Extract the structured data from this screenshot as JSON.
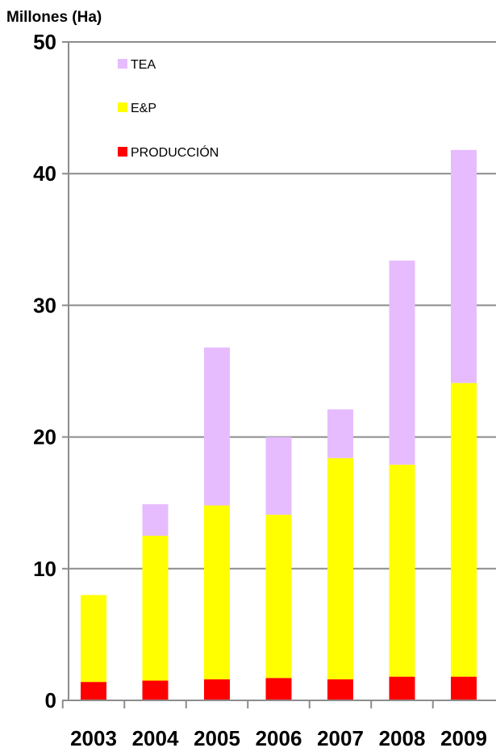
{
  "chart_data": {
    "type": "bar",
    "stacked": true,
    "ylabel": "Millones (Ha)",
    "categories": [
      "2003",
      "2004",
      "2005",
      "2006",
      "2007",
      "2008",
      "2009"
    ],
    "ylim": [
      0,
      50
    ],
    "yticks": [
      0,
      10,
      20,
      30,
      40,
      50
    ],
    "grid": true,
    "legend_position": "top-left",
    "series": [
      {
        "name": "PRODUCCIÓN",
        "color": "#ff0000",
        "values": [
          1.4,
          1.5,
          1.6,
          1.7,
          1.6,
          1.8,
          1.8
        ]
      },
      {
        "name": "E&P",
        "color": "#ffff00",
        "values": [
          6.6,
          11.0,
          13.2,
          12.4,
          16.8,
          16.1,
          22.3
        ]
      },
      {
        "name": "TEA",
        "color": "#e6bcff",
        "values": [
          0.0,
          2.4,
          12.0,
          5.9,
          3.7,
          15.5,
          17.7
        ]
      }
    ],
    "legend_order": [
      "TEA",
      "E&P",
      "PRODUCCIÓN"
    ]
  }
}
